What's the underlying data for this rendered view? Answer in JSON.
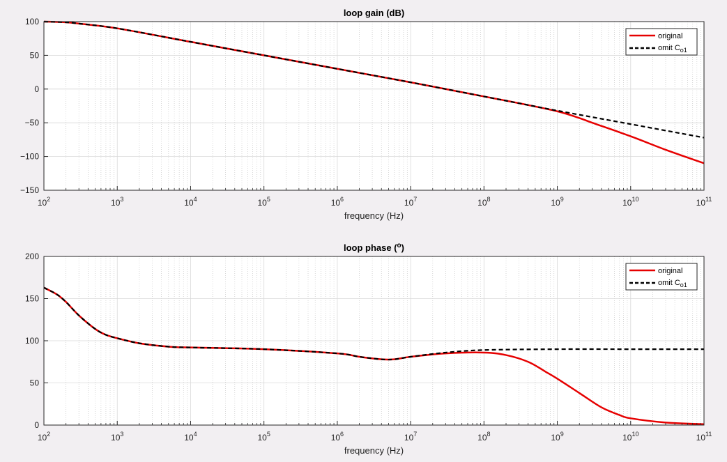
{
  "colors": {
    "original": "#e60000",
    "omit": "#000000",
    "grid": "#d8d8d8",
    "minor_grid": "#c8c8c8",
    "axes_bg": "#ffffff",
    "figure_bg": "#f2eff2"
  },
  "chart_data": [
    {
      "type": "line",
      "title": "loop gain (dB)",
      "xlabel": "frequency (Hz)",
      "ylabel": "",
      "xscale": "log",
      "xlim": [
        100,
        100000000000
      ],
      "ylim": [
        -150,
        100
      ],
      "xticks": [
        {
          "base": "10",
          "exp": "2"
        },
        {
          "base": "10",
          "exp": "3"
        },
        {
          "base": "10",
          "exp": "4"
        },
        {
          "base": "10",
          "exp": "5"
        },
        {
          "base": "10",
          "exp": "6"
        },
        {
          "base": "10",
          "exp": "7"
        },
        {
          "base": "10",
          "exp": "8"
        },
        {
          "base": "10",
          "exp": "9"
        },
        {
          "base": "10",
          "exp": "10"
        },
        {
          "base": "10",
          "exp": "11"
        }
      ],
      "yticks": [
        {
          "value": 100,
          "label": "100"
        },
        {
          "value": 50,
          "label": "50"
        },
        {
          "value": 0,
          "label": "0"
        },
        {
          "value": -50,
          "label": "-50"
        },
        {
          "value": -100,
          "label": "-100"
        },
        {
          "value": -150,
          "label": "-150"
        }
      ],
      "grid": true,
      "legend_position": "top-right",
      "series": [
        {
          "name": "original",
          "style": "solid",
          "x": [
            100,
            200,
            300,
            1000,
            10000,
            100000,
            1000000,
            10000000,
            100000000,
            300000000,
            1000000000,
            2000000000,
            3000000000,
            10000000000,
            30000000000,
            100000000000
          ],
          "y": [
            100,
            99,
            97,
            90,
            70,
            50,
            30,
            10,
            -11,
            -21,
            -33,
            -43,
            -50,
            -70,
            -90,
            -110
          ]
        },
        {
          "name": "omit C",
          "name_sub": "o1",
          "style": "dashed",
          "x": [
            100,
            200,
            300,
            1000,
            10000,
            100000,
            1000000,
            10000000,
            100000000,
            1000000000,
            10000000000,
            100000000000
          ],
          "y": [
            100,
            99,
            97,
            90,
            70,
            50,
            30,
            10,
            -11,
            -32,
            -52,
            -72
          ]
        }
      ]
    },
    {
      "type": "line",
      "title": "loop phase (",
      "title_sup": "o",
      "title_end": ")",
      "xlabel": "frequency (Hz)",
      "ylabel": "",
      "xscale": "log",
      "xlim": [
        100,
        100000000000
      ],
      "ylim": [
        0,
        200
      ],
      "xticks": [
        {
          "base": "10",
          "exp": "2"
        },
        {
          "base": "10",
          "exp": "3"
        },
        {
          "base": "10",
          "exp": "4"
        },
        {
          "base": "10",
          "exp": "5"
        },
        {
          "base": "10",
          "exp": "6"
        },
        {
          "base": "10",
          "exp": "7"
        },
        {
          "base": "10",
          "exp": "8"
        },
        {
          "base": "10",
          "exp": "9"
        },
        {
          "base": "10",
          "exp": "10"
        },
        {
          "base": "10",
          "exp": "11"
        }
      ],
      "yticks": [
        {
          "value": 200,
          "label": "200"
        },
        {
          "value": 150,
          "label": "150"
        },
        {
          "value": 100,
          "label": "100"
        },
        {
          "value": 50,
          "label": "50"
        },
        {
          "value": 0,
          "label": "0"
        }
      ],
      "grid": true,
      "legend_position": "top-right",
      "series": [
        {
          "name": "original",
          "style": "solid",
          "x": [
            100,
            150,
            200,
            300,
            500,
            700,
            1000,
            2000,
            5000,
            10000,
            100000,
            1000000,
            2000000,
            4000000,
            6000000,
            10000000,
            30000000,
            100000000,
            200000000,
            400000000,
            700000000,
            1000000000,
            2000000000,
            4000000000,
            7000000000,
            10000000000,
            30000000000,
            100000000000
          ],
          "y": [
            163,
            155,
            146,
            130,
            114,
            107,
            103,
            97,
            93,
            92,
            90,
            85,
            81,
            78,
            78,
            81,
            85,
            86,
            83,
            75,
            63,
            55,
            38,
            21,
            12,
            8,
            3,
            1
          ]
        },
        {
          "name": "omit C",
          "name_sub": "o1",
          "style": "dashed",
          "x": [
            100,
            150,
            200,
            300,
            500,
            700,
            1000,
            2000,
            5000,
            10000,
            100000,
            1000000,
            2000000,
            4000000,
            6000000,
            10000000,
            30000000,
            100000000,
            1000000000,
            10000000000,
            100000000000
          ],
          "y": [
            163,
            155,
            146,
            130,
            114,
            107,
            103,
            97,
            93,
            92,
            90,
            85,
            81,
            78,
            78,
            81,
            86,
            89,
            90,
            90,
            90
          ]
        }
      ]
    }
  ]
}
